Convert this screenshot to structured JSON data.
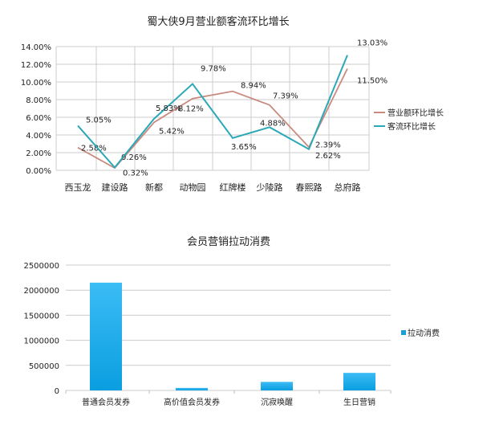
{
  "chart_data": [
    {
      "type": "line",
      "title": "蜀大侠9月营业额客流环比增长",
      "categories": [
        "西玉龙",
        "建设路",
        "新都",
        "动物园",
        "红牌楼",
        "少陵路",
        "春熙路",
        "总府路"
      ],
      "ylim": [
        0,
        14
      ],
      "yticks": [
        "0.00%",
        "2.00%",
        "4.00%",
        "6.00%",
        "8.00%",
        "10.00%",
        "12.00%",
        "14.00%"
      ],
      "grid": true,
      "legend": "right",
      "series": [
        {
          "name": "营业额环比增长",
          "color": "#c98a80",
          "values": [
            2.58,
            0.26,
            5.42,
            8.12,
            8.94,
            7.39,
            2.62,
            11.5
          ],
          "labels": [
            "2.58%",
            "0.26%",
            "5.42%",
            "8.12%",
            "8.94%",
            "7.39%",
            "2.62%",
            "11.50%"
          ]
        },
        {
          "name": "客流环比增长",
          "color": "#2aa8b8",
          "values": [
            5.05,
            0.32,
            5.83,
            9.78,
            3.65,
            4.88,
            2.39,
            13.03
          ],
          "labels": [
            "5.05%",
            "0.32%",
            "5.83%",
            "9.78%",
            "3.65%",
            "4.88%",
            "2.39%",
            "13.03%"
          ]
        }
      ]
    },
    {
      "type": "bar",
      "title": "会员营销拉动消费",
      "categories": [
        "普通会员发券",
        "高价值会员发券",
        "沉寂唤醒",
        "生日营销"
      ],
      "ylim": [
        0,
        2500000
      ],
      "yticks": [
        "0",
        "500000",
        "1000000",
        "1500000",
        "2000000",
        "2500000"
      ],
      "grid": true,
      "legend": "right",
      "series": [
        {
          "name": "拉动消费",
          "color": "#1fb2ee",
          "values": [
            2150000,
            50000,
            170000,
            350000
          ]
        }
      ]
    }
  ]
}
